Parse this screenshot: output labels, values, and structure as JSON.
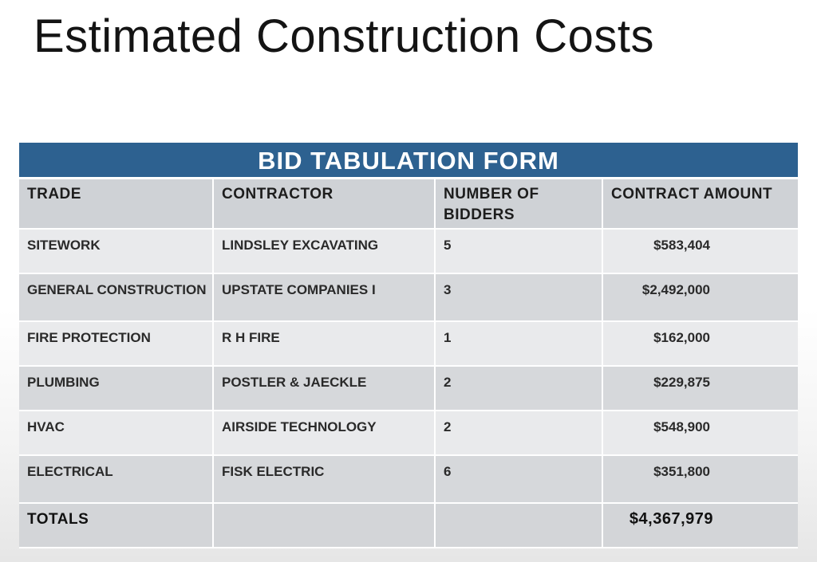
{
  "slide": {
    "title": "Estimated Construction Costs"
  },
  "bid_table": {
    "title": "BID TABULATION FORM",
    "columns": {
      "trade": "TRADE",
      "contractor": "CONTRACTOR",
      "number_of_bidders": "NUMBER OF BIDDERS",
      "contract_amount": "CONTRACT AMOUNT"
    },
    "rows": [
      {
        "trade": "SITEWORK",
        "contractor": "LINDSLEY EXCAVATING",
        "bidders": "5",
        "amount": "$583,404"
      },
      {
        "trade": "GENERAL CONSTRUCTION",
        "contractor": "UPSTATE COMPANIES I",
        "bidders": "3",
        "amount": "$2,492,000"
      },
      {
        "trade": "FIRE PROTECTION",
        "contractor": "R H FIRE",
        "bidders": "1",
        "amount": "$162,000"
      },
      {
        "trade": "PLUMBING",
        "contractor": "POSTLER & JAECKLE",
        "bidders": "2",
        "amount": "$229,875"
      },
      {
        "trade": "HVAC",
        "contractor": "AIRSIDE TECHNOLOGY",
        "bidders": "2",
        "amount": "$548,900"
      },
      {
        "trade": "ELECTRICAL",
        "contractor": "FISK ELECTRIC",
        "bidders": "6",
        "amount": "$351,800"
      }
    ],
    "totals": {
      "label": "TOTALS",
      "amount": "$4,367,979"
    },
    "header_color": "#2d6190"
  }
}
